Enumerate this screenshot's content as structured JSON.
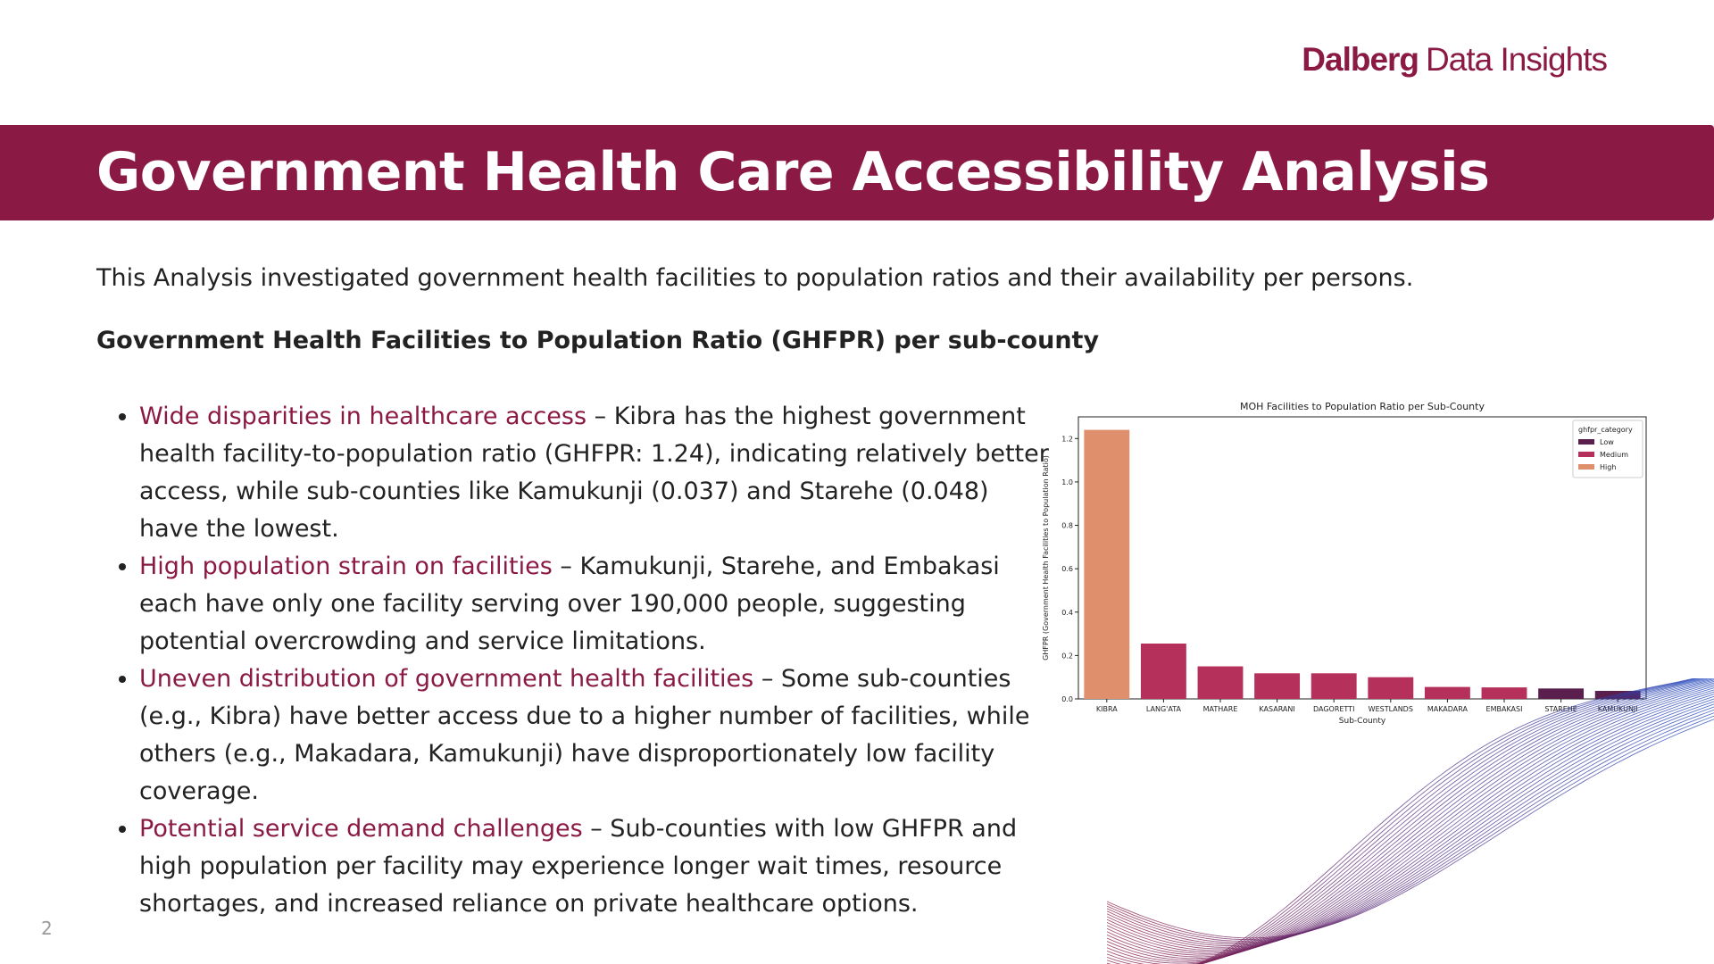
{
  "brand": {
    "name": "Dalberg",
    "suffix": "Data Insights"
  },
  "title": "Government Health Care Accessibility Analysis",
  "intro": "This Analysis investigated government health facilities to population ratios and their availability per persons.",
  "subheading": "Government Health Facilities to Population Ratio (GHFPR) per sub-county",
  "bullets": [
    {
      "lead": "Wide disparities in healthcare access",
      "text": " – Kibra has the highest government health facility-to-population ratio (GHFPR: 1.24), indicating relatively better access, while sub-counties like Kamukunji (0.037) and Starehe (0.048) have the lowest."
    },
    {
      "lead": "High population strain on facilities",
      "text": " – Kamukunji, Starehe, and Embakasi each have only one facility serving over 190,000 people, suggesting potential overcrowding and service limitations."
    },
    {
      "lead": "Uneven distribution of government health facilities",
      "text": " – Some sub-counties (e.g., Kibra) have better access due to a higher number of facilities, while others (e.g., Makadara, Kamukunji) have disproportionately low facility coverage."
    },
    {
      "lead": "Potential service demand challenges",
      "text": " – Sub-counties with low GHFPR and high population per facility may experience longer wait times, resource shortages, and increased reliance on private healthcare options."
    }
  ],
  "page_number": "2",
  "chart_data": {
    "type": "bar",
    "title": "MOH Facilities to Population Ratio per Sub-County",
    "xlabel": "Sub-County",
    "ylabel": "GHFPR (Government Health Facilities to Population Ratio)",
    "categories": [
      "KIBRA",
      "LANG'ATA",
      "MATHARE",
      "KASARANI",
      "DAGORETTI",
      "WESTLANDS",
      "MAKADARA",
      "EMBAKASI",
      "STAREHE",
      "KAMUKUNJI"
    ],
    "values": [
      1.24,
      0.255,
      0.15,
      0.118,
      0.118,
      0.1,
      0.055,
      0.053,
      0.048,
      0.037
    ],
    "value_categories": [
      "High",
      "Medium",
      "Medium",
      "Medium",
      "Medium",
      "Medium",
      "Medium",
      "Medium",
      "Low",
      "Low"
    ],
    "ylim": [
      0,
      1.3
    ],
    "yticks": [
      "0.0",
      "0.2",
      "0.4",
      "0.6",
      "0.8",
      "1.0",
      "1.2"
    ],
    "grid": false,
    "legend": {
      "title": "ghfpr_category",
      "position": "top-right",
      "entries": [
        {
          "name": "Low",
          "color": "#5a1f4d"
        },
        {
          "name": "Medium",
          "color": "#b5305a"
        },
        {
          "name": "High",
          "color": "#e08f6c"
        }
      ]
    }
  },
  "colors": {
    "accent": "#8a1a44",
    "text": "#222222",
    "page_number": "#9a9a9a"
  }
}
